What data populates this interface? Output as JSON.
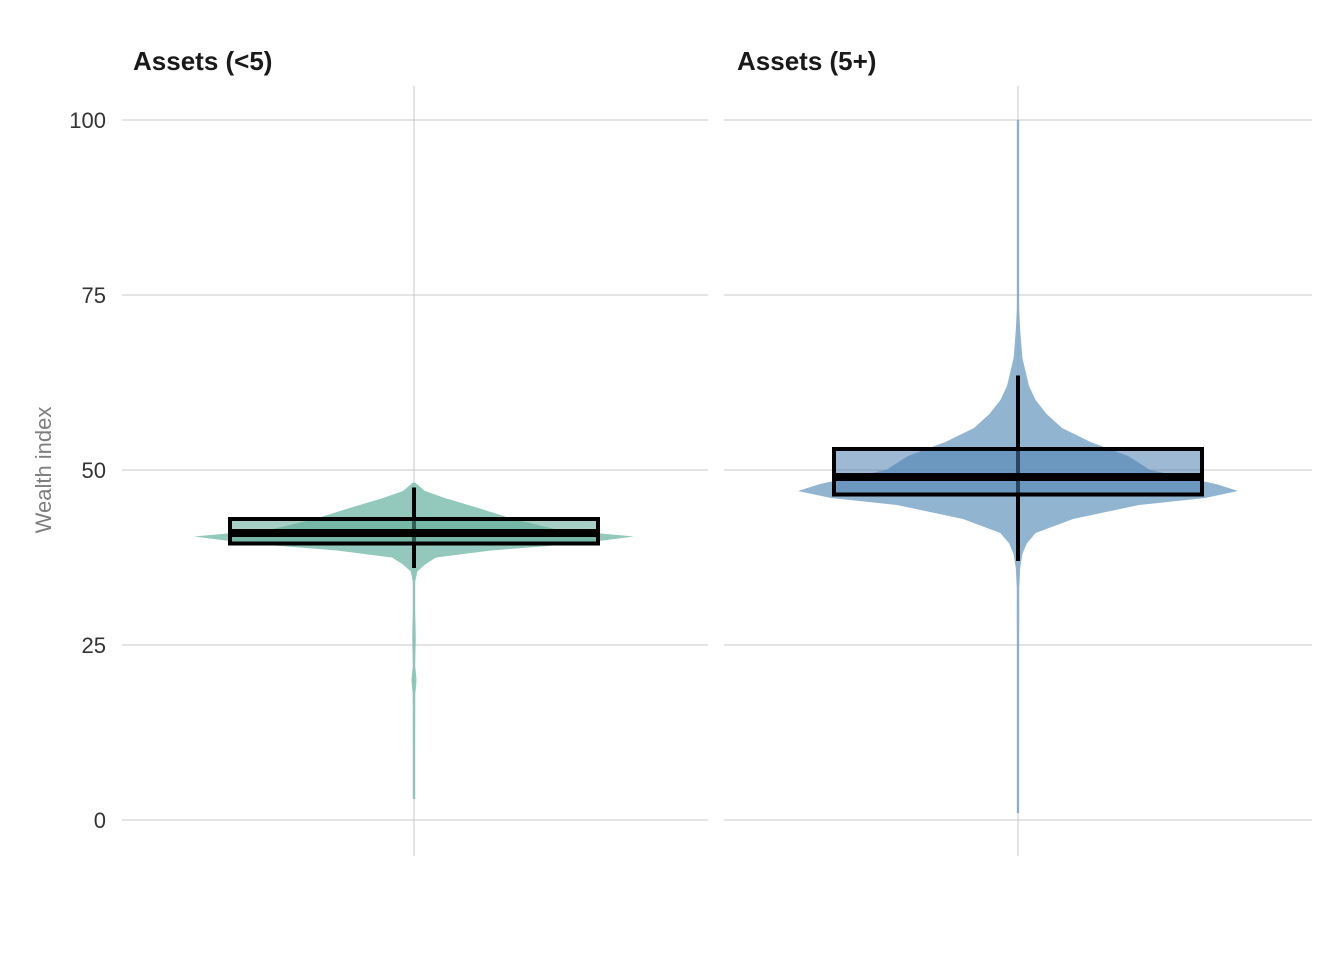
{
  "chart_data": {
    "type": "violin",
    "ylabel": "Wealth index",
    "ylim": [
      -5,
      105
    ],
    "yticks": [
      0,
      25,
      50,
      75,
      100
    ],
    "grid": true,
    "legend": "none",
    "panels": [
      {
        "title": "Assets (<5)",
        "color": "#7fbfb0",
        "box_fill": "#5fa898",
        "box": {
          "q1": 39.5,
          "median": 41,
          "q3": 43,
          "whisker_low": 36,
          "whisker_high": 47.5
        },
        "density": [
          [
            3,
            0.002
          ],
          [
            10,
            0.004
          ],
          [
            18,
            0.006
          ],
          [
            20,
            0.012
          ],
          [
            22,
            0.005
          ],
          [
            26,
            0.008
          ],
          [
            28,
            0.007
          ],
          [
            30,
            0.004
          ],
          [
            34,
            0.004
          ],
          [
            35.5,
            0.015
          ],
          [
            36.5,
            0.05
          ],
          [
            37.5,
            0.1
          ],
          [
            38.5,
            0.35
          ],
          [
            39.5,
            0.75
          ],
          [
            40.5,
            1.0
          ],
          [
            41.5,
            0.65
          ],
          [
            43,
            0.45
          ],
          [
            44.5,
            0.3
          ],
          [
            46,
            0.14
          ],
          [
            47,
            0.05
          ],
          [
            47.8,
            0.02
          ],
          [
            48.2,
            0.0
          ]
        ]
      },
      {
        "title": "Assets (5+)",
        "color": "#7ea7c8",
        "box_fill": "#4f7fae",
        "box": {
          "q1": 46.5,
          "median": 49,
          "q3": 53,
          "whisker_low": 37,
          "whisker_high": 63.5
        },
        "density": [
          [
            1,
            0.004
          ],
          [
            3,
            0.001
          ],
          [
            27,
            0.001
          ],
          [
            29,
            0.006
          ],
          [
            33,
            0.004
          ],
          [
            36,
            0.01
          ],
          [
            38,
            0.02
          ],
          [
            39.5,
            0.04
          ],
          [
            41,
            0.08
          ],
          [
            43,
            0.25
          ],
          [
            45,
            0.55
          ],
          [
            46,
            0.85
          ],
          [
            47,
            1.0
          ],
          [
            48,
            0.9
          ],
          [
            50,
            0.6
          ],
          [
            52,
            0.5
          ],
          [
            54,
            0.33
          ],
          [
            56,
            0.2
          ],
          [
            58,
            0.13
          ],
          [
            60,
            0.08
          ],
          [
            62,
            0.05
          ],
          [
            64,
            0.035
          ],
          [
            66,
            0.02
          ],
          [
            68,
            0.015
          ],
          [
            70,
            0.01
          ],
          [
            73,
            0.005
          ],
          [
            76,
            0.004
          ],
          [
            80,
            0.002
          ],
          [
            85,
            0.003
          ],
          [
            90,
            0.001
          ],
          [
            100,
            0.002
          ]
        ]
      }
    ]
  }
}
